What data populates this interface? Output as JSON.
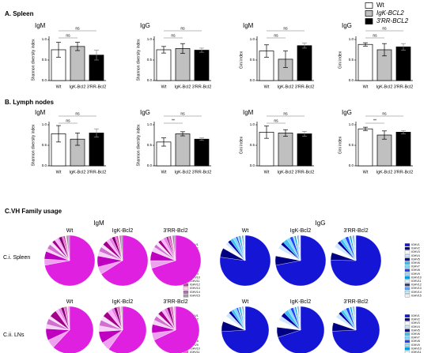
{
  "legend": {
    "items": [
      "Wt",
      "IgK-BCL2",
      "3'RR-BCL2"
    ],
    "colors": [
      "#ffffff",
      "#c0c0c0",
      "#000000"
    ]
  },
  "sections": [
    "A. Spleen",
    "B. Lymph nodes",
    "C.VH Family usage"
  ],
  "pie_headers": [
    "IgM",
    "IgG"
  ],
  "pie_rows": [
    "C.i. Spleen",
    "C.ii. LNs"
  ],
  "pie_legends": [
    {
      "categories": [
        "IGHV1",
        "IGHV2",
        "IGHV3",
        "IGHV4",
        "IGHV5",
        "IGHV6",
        "IGHV7",
        "IGHV8",
        "IGHV9",
        "IGHV10",
        "IGHV11",
        "IGHV12",
        "IGHV13",
        "IGHV14",
        "IGHV15"
      ],
      "colors": [
        "#e020e0",
        "#f0a0f0",
        "#c000c0",
        "#f8d0f8",
        "#d070d0",
        "#fbe0fb",
        "#a0008a",
        "#ffb0ff",
        "#e880e8",
        "#800070",
        "#f060d0",
        "#c040a0",
        "#ffd8f0",
        "#b070b0",
        "#a0a0a0"
      ]
    },
    {
      "categories": [
        "IGHV1",
        "IGHV2",
        "IGHV3",
        "IGHV4",
        "IGHV5",
        "IGHV6",
        "IGHV7",
        "IGHV8",
        "IGHV9",
        "IGHV10",
        "IGHV11",
        "IGHV12",
        "IGHV13",
        "IGHV14",
        "IGHV15"
      ],
      "colors": [
        "#1515d5",
        "#000080",
        "#ffffff",
        "#d0e8ff",
        "#0000a0",
        "#40c0f0",
        "#80d8ff",
        "#2040ff",
        "#a0e0ff",
        "#00a0e0",
        "#e8f8ff",
        "#304080",
        "#60a0ff",
        "#c0f0ff",
        "#f0f0f0"
      ]
    }
  ],
  "chart_data": [
    {
      "type": "bar",
      "title": "IgM",
      "ylabel": "Shannon diversity index",
      "categories": [
        "Wt",
        "IgK-Bcl2",
        "3'RR-Bcl2"
      ],
      "colors": [
        "#ffffff",
        "#c0c0c0",
        "#000000"
      ],
      "values": [
        0.75,
        0.83,
        0.62
      ],
      "errors": [
        0.18,
        0.1,
        0.12
      ],
      "ylim": [
        0,
        1
      ],
      "yticks": [
        {
          "value": 0,
          "label": "0.0"
        },
        {
          "value": 0.5,
          "label": "0.5"
        },
        {
          "value": 1,
          "label": "1.0"
        }
      ],
      "brackets": [
        "ns",
        "ns"
      ]
    },
    {
      "type": "bar",
      "title": "IgG",
      "ylabel": "Shannon diversity index",
      "categories": [
        "Wt",
        "IgK-Bcl2",
        "3'RR-Bcl2"
      ],
      "colors": [
        "#ffffff",
        "#c0c0c0",
        "#000000"
      ],
      "values": [
        0.75,
        0.78,
        0.74
      ],
      "errors": [
        0.08,
        0.12,
        0.05
      ],
      "ylim": [
        0,
        1
      ],
      "yticks": [
        {
          "value": 0,
          "label": "0.0"
        },
        {
          "value": 0.5,
          "label": "0.5"
        },
        {
          "value": 1,
          "label": "1.0"
        }
      ],
      "brackets": [
        "ns",
        "ns"
      ]
    },
    {
      "type": "bar",
      "title": "IgM",
      "ylabel": "Gini index",
      "categories": [
        "Wt",
        "IgK-Bcl2",
        "3'RR-Bcl2"
      ],
      "colors": [
        "#ffffff",
        "#c0c0c0",
        "#000000"
      ],
      "values": [
        0.72,
        0.52,
        0.85
      ],
      "errors": [
        0.15,
        0.2,
        0.06
      ],
      "ylim": [
        0,
        1
      ],
      "yticks": [
        {
          "value": 0,
          "label": "0.0"
        },
        {
          "value": 0.5,
          "label": "0.5"
        },
        {
          "value": 1,
          "label": "1.0"
        }
      ],
      "brackets": [
        "ns",
        "ns"
      ]
    },
    {
      "type": "bar",
      "title": "IgG",
      "ylabel": "Gini index",
      "categories": [
        "Wt",
        "IgK-Bcl2",
        "3'RR-Bcl2"
      ],
      "colors": [
        "#ffffff",
        "#c0c0c0",
        "#000000"
      ],
      "values": [
        0.88,
        0.75,
        0.82
      ],
      "errors": [
        0.04,
        0.15,
        0.08
      ],
      "ylim": [
        0,
        1
      ],
      "yticks": [
        {
          "value": 0,
          "label": "0.0"
        },
        {
          "value": 0.5,
          "label": "0.5"
        },
        {
          "value": 1,
          "label": "1.0"
        }
      ],
      "brackets": [
        "ns",
        "ns"
      ]
    },
    {
      "type": "bar",
      "title": "IgM",
      "ylabel": "Shannon diversity index",
      "categories": [
        "Wt",
        "IgK-Bcl2",
        "3'RR-Bcl2"
      ],
      "colors": [
        "#ffffff",
        "#c0c0c0",
        "#000000"
      ],
      "values": [
        0.78,
        0.65,
        0.8
      ],
      "errors": [
        0.2,
        0.15,
        0.1
      ],
      "ylim": [
        0,
        1
      ],
      "yticks": [
        {
          "value": 0,
          "label": "0.0"
        },
        {
          "value": 0.5,
          "label": "0.5"
        },
        {
          "value": 1,
          "label": "1.0"
        }
      ],
      "brackets": [
        "ns",
        "ns"
      ]
    },
    {
      "type": "bar",
      "title": "IgG",
      "ylabel": "Shannon diversity index",
      "categories": [
        "Wt",
        "IgK-Bcl2",
        "3'RR-Bcl2"
      ],
      "colors": [
        "#ffffff",
        "#c0c0c0",
        "#000000"
      ],
      "values": [
        0.58,
        0.78,
        0.65
      ],
      "errors": [
        0.1,
        0.05,
        0.03
      ],
      "ylim": [
        0,
        1
      ],
      "yticks": [
        {
          "value": 0,
          "label": "0.0"
        },
        {
          "value": 0.5,
          "label": "0.5"
        },
        {
          "value": 1,
          "label": "1.0"
        }
      ],
      "brackets": [
        "**",
        "ns"
      ]
    },
    {
      "type": "bar",
      "title": "IgM",
      "ylabel": "Gini index",
      "categories": [
        "Wt",
        "IgK-Bcl2",
        "3'RR-Bcl2"
      ],
      "colors": [
        "#ffffff",
        "#c0c0c0",
        "#000000"
      ],
      "values": [
        0.82,
        0.8,
        0.78
      ],
      "errors": [
        0.15,
        0.08,
        0.06
      ],
      "ylim": [
        0,
        1
      ],
      "yticks": [
        {
          "value": 0,
          "label": "0.0"
        },
        {
          "value": 0.5,
          "label": "0.5"
        },
        {
          "value": 1,
          "label": "1.0"
        }
      ],
      "brackets": [
        "ns",
        "ns"
      ]
    },
    {
      "type": "bar",
      "title": "IgG",
      "ylabel": "Gini index",
      "categories": [
        "Wt",
        "IgK-Bcl2",
        "3'RR-Bcl2"
      ],
      "colors": [
        "#ffffff",
        "#c0c0c0",
        "#000000"
      ],
      "values": [
        0.9,
        0.75,
        0.82
      ],
      "errors": [
        0.04,
        0.1,
        0.04
      ],
      "ylim": [
        0,
        1
      ],
      "yticks": [
        {
          "value": 0,
          "label": "0.0"
        },
        {
          "value": 0.5,
          "label": "0.5"
        },
        {
          "value": 1,
          "label": "1.0"
        }
      ],
      "brackets": [
        "**",
        "ns"
      ]
    },
    {
      "type": "pie",
      "title": "Wt",
      "values": [
        72,
        4,
        5,
        2,
        3,
        2,
        2,
        2,
        1,
        2,
        1,
        1,
        1,
        1,
        1
      ]
    },
    {
      "type": "pie",
      "title": "IgK-Bcl2",
      "values": [
        66,
        5,
        7,
        3,
        3,
        2,
        3,
        2,
        2,
        2,
        1,
        1,
        1,
        1,
        1
      ]
    },
    {
      "type": "pie",
      "title": "3'RR-Bcl2",
      "values": [
        70,
        5,
        6,
        3,
        2,
        2,
        2,
        2,
        2,
        1,
        1,
        1,
        1,
        1,
        1
      ]
    },
    {
      "type": "pie",
      "title": "Wt",
      "values": [
        78,
        6,
        3,
        2,
        2,
        2,
        2,
        1,
        1,
        1,
        1,
        0.5,
        0.5,
        0.5,
        0.5
      ]
    },
    {
      "type": "pie",
      "title": "IgK-Bcl2",
      "values": [
        72,
        6,
        5,
        3,
        2,
        3,
        2,
        2,
        1,
        1,
        1,
        0.5,
        0.5,
        0.5,
        0.5
      ]
    },
    {
      "type": "pie",
      "title": "3'RR-Bcl2",
      "values": [
        76,
        5,
        4,
        3,
        2,
        2,
        2,
        2,
        1,
        1,
        1,
        0.5,
        0.5,
        0.5,
        0.5
      ]
    },
    {
      "type": "pie",
      "title": "Wt",
      "values": [
        62,
        6,
        8,
        3,
        4,
        2,
        5,
        2,
        2,
        2,
        1,
        1,
        1,
        0.5,
        0.5
      ]
    },
    {
      "type": "pie",
      "title": "IgK-Bcl2",
      "values": [
        60,
        6,
        8,
        4,
        4,
        3,
        4,
        3,
        2,
        2,
        1,
        1,
        1,
        0.5,
        0.5
      ]
    },
    {
      "type": "pie",
      "title": "3'RR-Bcl2",
      "values": [
        68,
        5,
        6,
        3,
        3,
        2,
        3,
        2,
        2,
        2,
        1,
        1,
        1,
        0.5,
        0.5
      ]
    },
    {
      "type": "pie",
      "title": "Wt",
      "values": [
        74,
        7,
        4,
        3,
        2,
        2,
        2,
        1,
        1,
        1,
        1,
        0.5,
        0.5,
        0.5,
        0.5
      ]
    },
    {
      "type": "pie",
      "title": "IgK-Bcl2",
      "values": [
        70,
        7,
        5,
        3,
        3,
        3,
        2,
        2,
        1,
        1,
        1,
        0.5,
        0.5,
        0.5,
        0.5
      ]
    },
    {
      "type": "pie",
      "title": "3'RR-Bcl2",
      "values": [
        75,
        6,
        4,
        3,
        2,
        2,
        2,
        2,
        1,
        1,
        1,
        0.5,
        0.5,
        0.5,
        0.5
      ]
    }
  ]
}
